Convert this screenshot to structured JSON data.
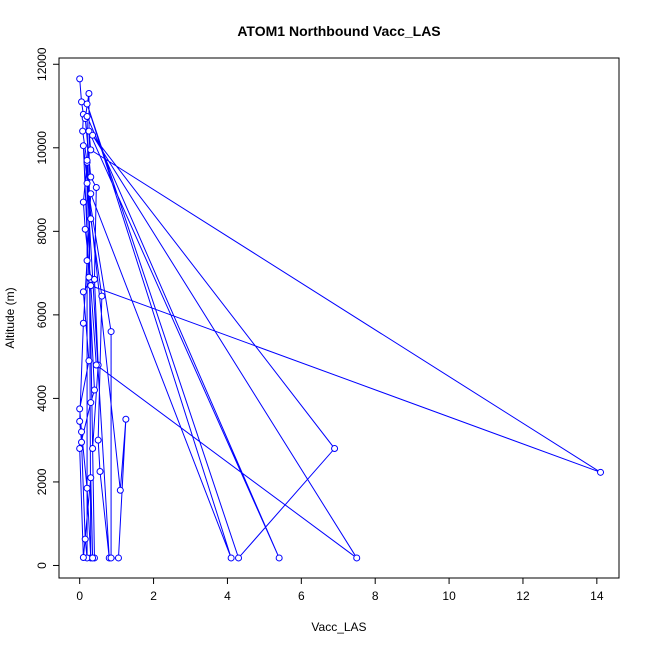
{
  "chart_data": {
    "type": "line",
    "title": "ATOM1 Northbound Vacc_LAS",
    "xlabel": "Vacc_LAS",
    "ylabel": "Altitude (m)",
    "xlim": [
      -0.56,
      14.6
    ],
    "ylim": [
      -300,
      12150
    ],
    "xticks": [
      0,
      2,
      4,
      6,
      8,
      10,
      12,
      14
    ],
    "yticks": [
      0,
      2000,
      4000,
      6000,
      8000,
      10000,
      12000
    ],
    "series_color": "#0000ff",
    "series": [
      {
        "name": "Vacc_LAS",
        "points": [
          [
            0.0,
            11650
          ],
          [
            0.05,
            11100
          ],
          [
            0.1,
            10800
          ],
          [
            0.08,
            10400
          ],
          [
            0.2,
            9650
          ],
          [
            0.1,
            8700
          ],
          [
            0.15,
            8050
          ],
          [
            0.3,
            6850
          ],
          [
            0.1,
            6550
          ],
          [
            0.25,
            4900
          ],
          [
            0.0,
            3750
          ],
          [
            0.05,
            3200
          ],
          [
            0.2,
            1850
          ],
          [
            0.3,
            180
          ],
          [
            0.25,
            11300
          ],
          [
            0.15,
            10700
          ],
          [
            0.3,
            9300
          ],
          [
            0.45,
            9050
          ],
          [
            0.4,
            6850
          ],
          [
            0.5,
            4800
          ],
          [
            0.35,
            2800
          ],
          [
            0.4,
            180
          ],
          [
            0.2,
            10750
          ],
          [
            5.4,
            180
          ],
          [
            0.25,
            10400
          ],
          [
            0.3,
            9950
          ],
          [
            14.1,
            2230
          ],
          [
            0.3,
            6700
          ],
          [
            0.45,
            4800
          ],
          [
            7.5,
            180
          ],
          [
            0.35,
            10300
          ],
          [
            6.9,
            2800
          ],
          [
            4.3,
            180
          ],
          [
            0.2,
            11050
          ],
          [
            4.1,
            180
          ],
          [
            0.3,
            8900
          ],
          [
            0.2,
            7300
          ],
          [
            0.1,
            5800
          ],
          [
            0.0,
            3450
          ],
          [
            0.05,
            2950
          ],
          [
            0.15,
            630
          ],
          [
            0.2,
            180
          ],
          [
            0.2,
            9700
          ],
          [
            0.3,
            8300
          ],
          [
            0.6,
            6450
          ],
          [
            0.5,
            3000
          ],
          [
            0.55,
            2250
          ],
          [
            0.8,
            180
          ],
          [
            0.2,
            9150
          ],
          [
            0.85,
            5600
          ],
          [
            0.85,
            180
          ],
          [
            1.05,
            180
          ],
          [
            1.25,
            3500
          ],
          [
            1.1,
            1800
          ],
          [
            0.1,
            10050
          ],
          [
            0.25,
            6900
          ],
          [
            0.4,
            4200
          ],
          [
            0.3,
            3900
          ],
          [
            0.0,
            2800
          ],
          [
            0.1,
            190
          ],
          [
            0.3,
            2100
          ],
          [
            0.35,
            180
          ]
        ]
      }
    ]
  }
}
